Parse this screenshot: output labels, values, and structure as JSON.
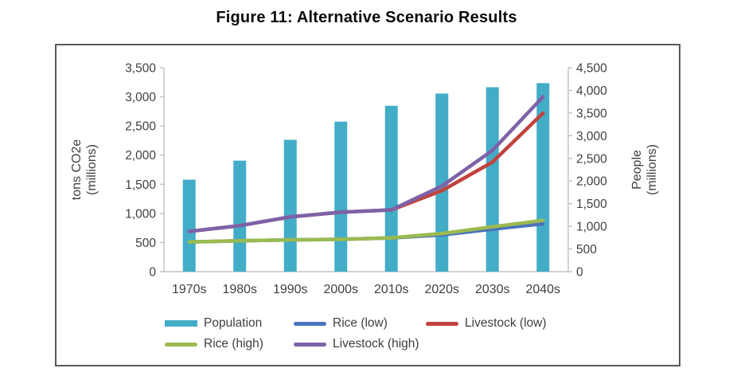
{
  "figure": {
    "title": "Figure 11: Alternative Scenario Results"
  },
  "chart_data": {
    "type": "bar",
    "subtype": "combo-bar-line-dual-axis",
    "categories": [
      "1970s",
      "1980s",
      "1990s",
      "2000s",
      "2010s",
      "2020s",
      "2030s",
      "2040s"
    ],
    "series": [
      {
        "name": "Population",
        "type": "bar",
        "axis": "right",
        "color": "#43ADC8",
        "values": [
          2030,
          2450,
          2910,
          3310,
          3660,
          3930,
          4070,
          4160
        ]
      },
      {
        "name": "Rice (low)",
        "type": "line",
        "axis": "left",
        "color": "#4A73BE",
        "values": [
          510,
          530,
          545,
          555,
          580,
          630,
          730,
          820
        ]
      },
      {
        "name": "Livestock (low)",
        "type": "line",
        "axis": "left",
        "color": "#C2423E",
        "values": [
          690,
          790,
          940,
          1020,
          1060,
          1390,
          1880,
          2720
        ]
      },
      {
        "name": "Rice (high)",
        "type": "line",
        "axis": "left",
        "color": "#9ABB4F",
        "values": [
          510,
          530,
          545,
          555,
          580,
          655,
          770,
          880
        ]
      },
      {
        "name": "Livestock (high)",
        "type": "line",
        "axis": "left",
        "color": "#7E62A7",
        "values": [
          690,
          790,
          940,
          1020,
          1060,
          1470,
          2080,
          3000
        ]
      }
    ],
    "left_axis": {
      "title_line1": "tons CO2e",
      "title_line2": "(millions)",
      "min": 0,
      "max": 3500,
      "step": 500
    },
    "right_axis": {
      "title_line1": "People",
      "title_line2": "(millions)",
      "min": 0,
      "max": 4500,
      "step": 500
    },
    "legend_rows": [
      [
        "Population",
        "Rice (low)",
        "Livestock (low)"
      ],
      [
        "Rice (high)",
        "Livestock (high)"
      ]
    ],
    "grid": false,
    "legend_position": "bottom",
    "axis_line_color": "#b8b8b8",
    "text_color": "#3f3f3f"
  }
}
